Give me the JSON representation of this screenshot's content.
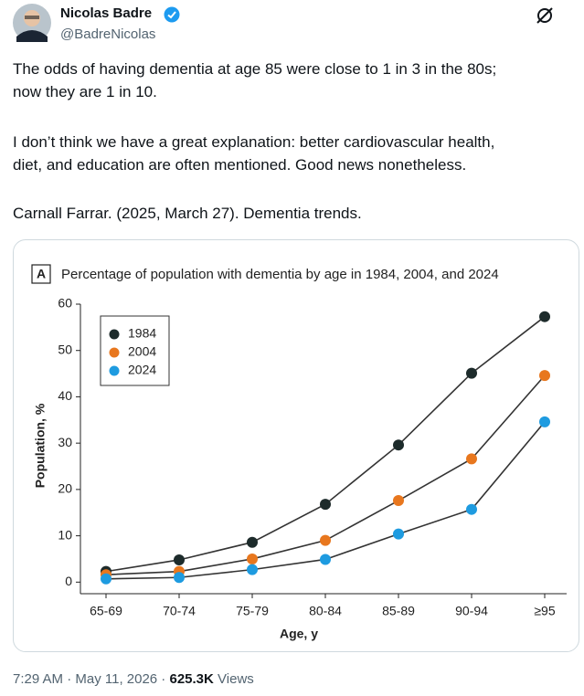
{
  "post": {
    "author": "Nicolas Badre",
    "handle": "@BadreNicolas",
    "paragraphs": [
      [
        "The odds of having dementia at age 85 were close to 1 in 3 in the 80s;",
        "now they are 1 in 10."
      ],
      [
        "I don’t think we have a great explanation: better cardiovascular health,",
        "diet, and education are often mentioned. Good news nonetheless."
      ],
      [
        "Carnall Farrar. (2025, March 27). Dementia trends."
      ]
    ],
    "timestamp": "7:29 AM · May 11, 2026 ·",
    "views_count": "625.3K",
    "views_label": "Views"
  },
  "chart_data": {
    "type": "line",
    "panel_label": "A",
    "title": "Percentage of population with dementia by age in 1984, 2004, and 2024",
    "x_label": "Age, y",
    "y_label": "Population, %",
    "categories": [
      "65-69",
      "70-74",
      "75-79",
      "80-84",
      "85-89",
      "90-94",
      "≥95"
    ],
    "series": [
      {
        "name": "1984",
        "color": "#1d2b2b",
        "values": [
          2.3,
          4.8,
          8.6,
          16.8,
          29.6,
          45.1,
          57.3
        ]
      },
      {
        "name": "2004",
        "color": "#e8771e",
        "values": [
          1.6,
          2.3,
          5.0,
          9.0,
          17.6,
          26.6,
          44.6
        ]
      },
      {
        "name": "2024",
        "color": "#1e9be0",
        "values": [
          0.7,
          1.0,
          2.7,
          4.9,
          10.4,
          15.7,
          34.6
        ]
      }
    ],
    "ylim": [
      -2.5,
      60
    ],
    "yticks": [
      0,
      10,
      20,
      30,
      40,
      50,
      60
    ],
    "legend": "upper-left",
    "line_color": "#333333"
  }
}
